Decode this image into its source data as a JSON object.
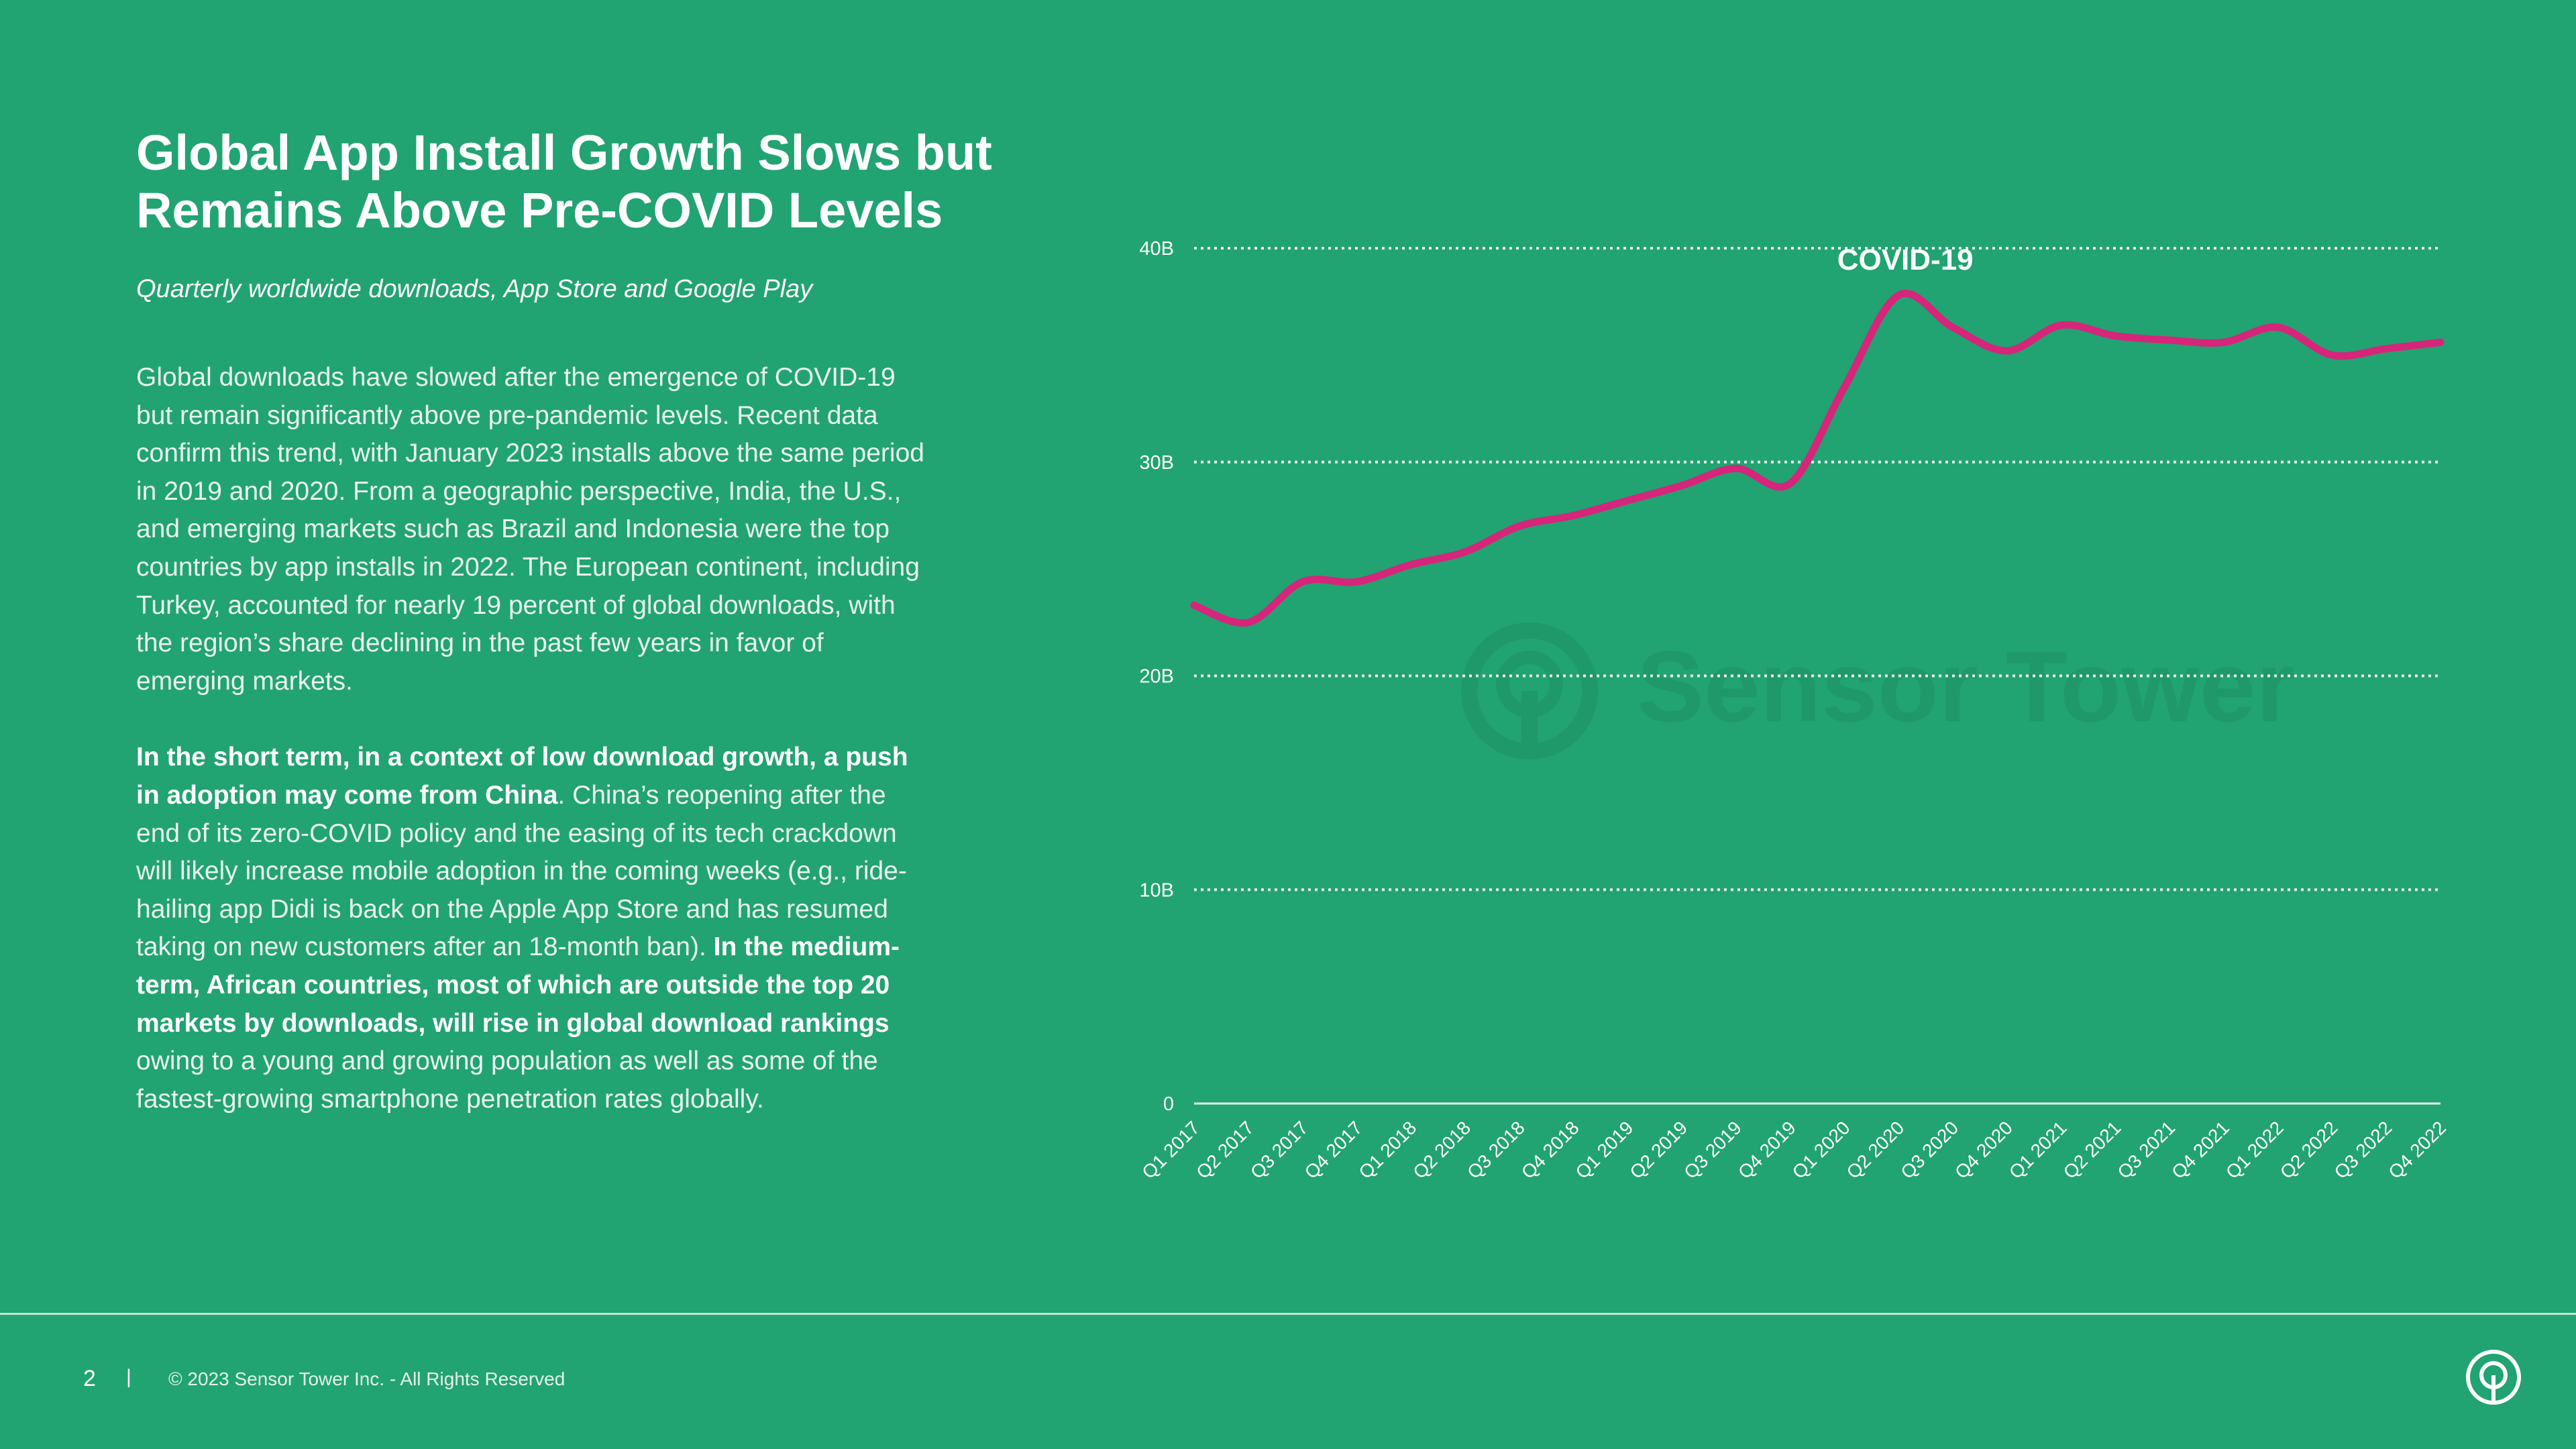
{
  "slide": {
    "title_line1": "Global App Install Growth Slows but",
    "title_line2": "Remains Above Pre-COVID Levels",
    "subtitle": "Quarterly worldwide downloads, App Store and Google Play",
    "para1": "Global downloads have slowed after the emergence of COVID-19 but remain significantly above pre-pandemic levels. Recent data confirm this trend, with January 2023 installs above the same period in 2019 and 2020.  From a geographic perspective, India, the U.S., and emerging markets such as Brazil and Indonesia were the top countries by app installs in 2022. The European continent, including Turkey, accounted for nearly 19 percent of global downloads, with the region’s share declining in the past few years in favor of emerging markets.",
    "para2_bold1": "In the short term, in a context of low download growth, a push in adoption may come from China",
    "para2_text1": ". China’s reopening after the end of its zero-COVID policy and the easing of its tech crackdown will likely increase mobile adoption in the coming weeks (e.g., ride-hailing app Didi is back on the Apple App Store and has resumed taking on new customers after an 18-month ban). ",
    "para2_bold2": "In the medium-term, African countries, most of which are outside the top 20 markets by downloads, will rise in global download rankings",
    "para2_text2": " owing to a young and growing population as well as some of the fastest-growing smartphone penetration rates globally."
  },
  "footer": {
    "page_number": "2",
    "separator": "|",
    "copyright": "© 2023 Sensor Tower Inc. - All Rights Reserved",
    "logo_icon": "sensor-tower-logo-icon"
  },
  "watermark": {
    "text": "Sensor Tower"
  },
  "colors": {
    "background": "#22a372",
    "line": "#d6257a",
    "text": "#ffffff"
  },
  "chart_data": {
    "type": "line",
    "categories": [
      "Q1 2017",
      "Q2 2017",
      "Q3 2017",
      "Q4 2017",
      "Q1 2018",
      "Q2 2018",
      "Q3 2018",
      "Q4 2018",
      "Q1 2019",
      "Q2 2019",
      "Q3 2019",
      "Q4 2019",
      "Q1 2020",
      "Q2 2020",
      "Q3 2020",
      "Q4 2020",
      "Q1 2021",
      "Q2 2021",
      "Q3 2021",
      "Q4 2021",
      "Q1 2022",
      "Q2 2022",
      "Q3 2022",
      "Q4 2022"
    ],
    "series": [
      {
        "values": [
          23.3,
          22.5,
          24.4,
          24.4,
          25.2,
          25.8,
          27.0,
          27.5,
          28.2,
          28.9,
          29.7,
          29.0,
          33.5,
          37.8,
          36.3,
          35.2,
          36.4,
          35.9,
          35.7,
          35.6,
          36.3,
          35.0,
          35.3,
          35.6
        ]
      }
    ],
    "yticks": [
      "0",
      "10B",
      "20B",
      "30B",
      "40B"
    ],
    "ytick_values": [
      0,
      10,
      20,
      30,
      40
    ],
    "ylim": [
      0,
      40
    ],
    "annotation": {
      "text": "COVID-19",
      "x": "Q2 2020"
    },
    "grid": true,
    "legend": "none"
  }
}
